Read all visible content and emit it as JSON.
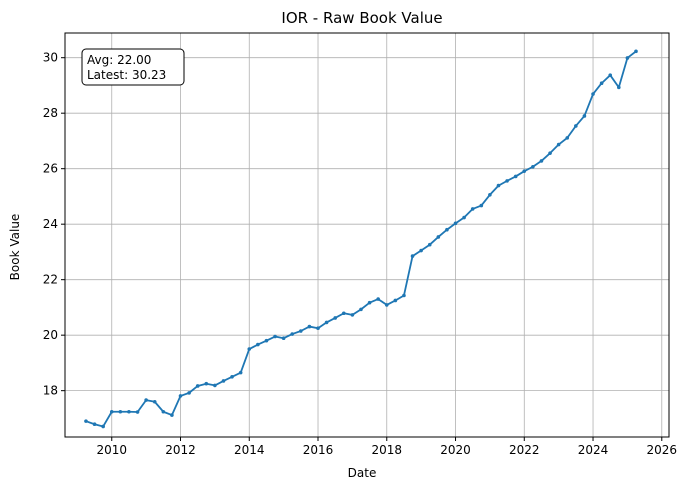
{
  "chart_data": {
    "type": "line",
    "title": "IOR - Raw Book Value",
    "xlabel": "Date",
    "ylabel": "Book Value",
    "xlim": [
      2008.64,
      2026.21
    ],
    "ylim": [
      16.33,
      30.89
    ],
    "x_ticks": [
      2010,
      2012,
      2014,
      2016,
      2018,
      2020,
      2022,
      2024,
      2026
    ],
    "y_ticks": [
      18,
      20,
      22,
      24,
      26,
      28,
      30
    ],
    "grid": true,
    "line_color": "#1f77b4",
    "annotation": {
      "lines": [
        "Avg: 22.00",
        "Latest: 30.23"
      ],
      "placement": "top-left"
    },
    "series": [
      {
        "x": [
          2009.25,
          2009.5,
          2009.75,
          2010.0,
          2010.25,
          2010.5,
          2010.75,
          2011.0,
          2011.25,
          2011.5,
          2011.75,
          2012.0,
          2012.25,
          2012.5,
          2012.75,
          2013.0,
          2013.25,
          2013.5,
          2013.75,
          2014.0,
          2014.25,
          2014.5,
          2014.75,
          2015.0,
          2015.25,
          2015.5,
          2015.75,
          2016.0,
          2016.25,
          2016.5,
          2016.75,
          2017.0,
          2017.25,
          2017.5,
          2017.75,
          2018.0,
          2018.25,
          2018.5,
          2018.75,
          2019.0,
          2019.25,
          2019.5,
          2019.75,
          2020.0,
          2020.25,
          2020.5,
          2020.75,
          2021.0,
          2021.25,
          2021.5,
          2021.75,
          2022.0,
          2022.25,
          2022.5,
          2022.75,
          2023.0,
          2023.25,
          2023.5,
          2023.75,
          2024.0,
          2024.25,
          2024.5,
          2024.75,
          2025.0,
          2025.25
        ],
        "values": [
          16.9,
          16.79,
          16.71,
          17.24,
          17.24,
          17.24,
          17.23,
          17.66,
          17.6,
          17.24,
          17.12,
          17.81,
          17.92,
          18.17,
          18.25,
          18.19,
          18.35,
          18.5,
          18.65,
          19.5,
          19.66,
          19.8,
          19.95,
          19.89,
          20.04,
          20.15,
          20.31,
          20.25,
          20.46,
          20.62,
          20.79,
          20.73,
          20.93,
          21.17,
          21.3,
          21.09,
          21.25,
          21.43,
          22.85,
          23.05,
          23.26,
          23.54,
          23.8,
          24.03,
          24.24,
          24.55,
          24.67,
          25.06,
          25.39,
          25.56,
          25.72,
          25.91,
          26.07,
          26.28,
          26.56,
          26.87,
          27.11,
          27.54,
          27.9,
          28.69,
          29.08,
          29.37,
          28.93,
          29.99,
          30.23
        ]
      }
    ]
  }
}
